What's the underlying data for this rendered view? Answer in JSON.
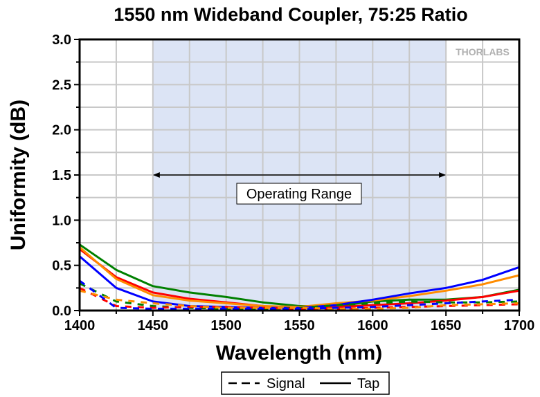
{
  "chart_data": {
    "type": "line",
    "title": "1550 nm Wideband Coupler, 75:25 Ratio",
    "xlabel": "Wavelength (nm)",
    "ylabel": "Uniformity (dB)",
    "xlim": [
      1400,
      1700
    ],
    "ylim": [
      0,
      3.0
    ],
    "xticks": [
      "1400",
      "1450",
      "1500",
      "1550",
      "1600",
      "1650",
      "1700"
    ],
    "yticks": [
      "0.0",
      "0.5",
      "1.0",
      "1.5",
      "2.0",
      "2.5",
      "3.0"
    ],
    "grid": true,
    "operating_range": {
      "from": 1450,
      "to": 1650,
      "label": "Operating Range",
      "arrow_y": 1.5,
      "shade": "#dce4f5"
    },
    "logo": "THORLABS",
    "legend": {
      "placement": "bottom-center",
      "entries": [
        {
          "label": "Signal",
          "style": "dashed"
        },
        {
          "label": "Tap",
          "style": "solid"
        }
      ]
    },
    "x": [
      1400,
      1425,
      1450,
      1475,
      1500,
      1525,
      1550,
      1575,
      1600,
      1625,
      1650,
      1675,
      1700
    ],
    "series": [
      {
        "name": "Tap green",
        "style": "solid",
        "color": "#008000",
        "values": [
          0.73,
          0.45,
          0.27,
          0.2,
          0.15,
          0.09,
          0.05,
          0.05,
          0.1,
          0.12,
          0.12,
          0.15,
          0.23
        ]
      },
      {
        "name": "Tap red",
        "style": "solid",
        "color": "#ff0000",
        "values": [
          0.68,
          0.37,
          0.2,
          0.13,
          0.09,
          0.05,
          0.03,
          0.04,
          0.06,
          0.08,
          0.11,
          0.15,
          0.22
        ]
      },
      {
        "name": "Tap orange",
        "style": "solid",
        "color": "#ff8c00",
        "values": [
          0.7,
          0.35,
          0.17,
          0.11,
          0.08,
          0.05,
          0.04,
          0.08,
          0.11,
          0.16,
          0.22,
          0.29,
          0.39
        ]
      },
      {
        "name": "Tap blue",
        "style": "solid",
        "color": "#0000ff",
        "values": [
          0.6,
          0.25,
          0.1,
          0.05,
          0.04,
          0.03,
          0.03,
          0.06,
          0.12,
          0.19,
          0.25,
          0.34,
          0.48
        ]
      },
      {
        "name": "Signal green",
        "style": "dashed",
        "color": "#008000",
        "values": [
          0.3,
          0.1,
          0.05,
          0.03,
          0.02,
          0.02,
          0.03,
          0.06,
          0.08,
          0.1,
          0.09,
          0.09,
          0.1
        ]
      },
      {
        "name": "Signal red",
        "style": "dashed",
        "color": "#ff0000",
        "values": [
          0.25,
          0.05,
          0.03,
          0.04,
          0.04,
          0.03,
          0.02,
          0.02,
          0.03,
          0.04,
          0.05,
          0.06,
          0.07
        ]
      },
      {
        "name": "Signal orange",
        "style": "dashed",
        "color": "#ff8c00",
        "values": [
          0.22,
          0.12,
          0.08,
          0.05,
          0.03,
          0.03,
          0.03,
          0.02,
          0.02,
          0.03,
          0.06,
          0.07,
          0.08
        ]
      },
      {
        "name": "Signal blue",
        "style": "dashed",
        "color": "#0000ff",
        "values": [
          0.33,
          0.03,
          0.02,
          0.02,
          0.02,
          0.02,
          0.02,
          0.03,
          0.04,
          0.06,
          0.08,
          0.1,
          0.12
        ]
      }
    ]
  }
}
